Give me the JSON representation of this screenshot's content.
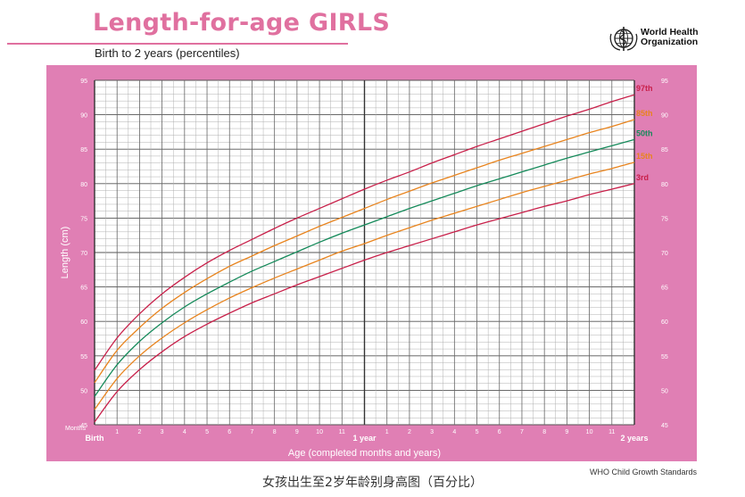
{
  "header": {
    "title": "Length-for-age GIRLS",
    "subtitle": "Birth to 2 years (percentiles)",
    "org_name_line1": "World Health",
    "org_name_line2": "Organization"
  },
  "footer": {
    "caption_cn": "女孩出生至2岁年龄别身高图（百分比）",
    "standards": "WHO Child Growth Standards"
  },
  "colors": {
    "frame": "#e07fb4",
    "grid": "#8a8a8a",
    "p97": "#c8204a",
    "p85": "#e8841e",
    "p50": "#158a5a",
    "p15": "#e8841e",
    "p3": "#c8204a"
  },
  "chart_data": {
    "type": "line",
    "xlabel": "Age (completed months and years)",
    "ylabel": "Length (cm)",
    "xlim": [
      0,
      24
    ],
    "ylim": [
      45,
      95
    ],
    "x_ticks": [
      {
        "value": 0,
        "label": "Birth"
      },
      {
        "value": 1,
        "label": "1"
      },
      {
        "value": 2,
        "label": "2"
      },
      {
        "value": 3,
        "label": "3"
      },
      {
        "value": 4,
        "label": "4"
      },
      {
        "value": 5,
        "label": "5"
      },
      {
        "value": 6,
        "label": "6"
      },
      {
        "value": 7,
        "label": "7"
      },
      {
        "value": 8,
        "label": "8"
      },
      {
        "value": 9,
        "label": "9"
      },
      {
        "value": 10,
        "label": "10"
      },
      {
        "value": 11,
        "label": "11"
      },
      {
        "value": 12,
        "label": "1 year"
      },
      {
        "value": 13,
        "label": "1"
      },
      {
        "value": 14,
        "label": "2"
      },
      {
        "value": 15,
        "label": "3"
      },
      {
        "value": 16,
        "label": "4"
      },
      {
        "value": 17,
        "label": "5"
      },
      {
        "value": 18,
        "label": "6"
      },
      {
        "value": 19,
        "label": "7"
      },
      {
        "value": 20,
        "label": "8"
      },
      {
        "value": 21,
        "label": "9"
      },
      {
        "value": 22,
        "label": "10"
      },
      {
        "value": 23,
        "label": "11"
      },
      {
        "value": 24,
        "label": "2 years"
      }
    ],
    "x_axis_unit_label": "Months",
    "y_ticks": [
      45,
      50,
      55,
      60,
      65,
      70,
      75,
      80,
      85,
      90,
      95
    ],
    "grid": true,
    "x": [
      0,
      1,
      2,
      3,
      4,
      5,
      6,
      7,
      8,
      9,
      10,
      11,
      12,
      13,
      14,
      15,
      16,
      17,
      18,
      19,
      20,
      21,
      22,
      23,
      24
    ],
    "series": [
      {
        "name": "97th",
        "color_key": "p97",
        "values": [
          52.9,
          57.6,
          61.1,
          64.0,
          66.4,
          68.5,
          70.3,
          71.9,
          73.5,
          75.0,
          76.4,
          77.8,
          79.2,
          80.5,
          81.7,
          83.0,
          84.2,
          85.4,
          86.5,
          87.6,
          88.7,
          89.8,
          90.8,
          91.9,
          92.9
        ]
      },
      {
        "name": "85th",
        "color_key": "p85",
        "values": [
          51.1,
          55.8,
          59.1,
          61.9,
          64.2,
          66.2,
          68.0,
          69.5,
          71.0,
          72.4,
          73.8,
          75.1,
          76.4,
          77.7,
          78.9,
          80.1,
          81.2,
          82.3,
          83.4,
          84.4,
          85.4,
          86.4,
          87.4,
          88.3,
          89.3
        ]
      },
      {
        "name": "50th",
        "color_key": "p50",
        "values": [
          49.1,
          53.7,
          57.1,
          59.8,
          62.1,
          64.0,
          65.7,
          67.3,
          68.7,
          70.1,
          71.5,
          72.8,
          74.0,
          75.2,
          76.4,
          77.5,
          78.6,
          79.7,
          80.7,
          81.7,
          82.7,
          83.7,
          84.6,
          85.5,
          86.4
        ]
      },
      {
        "name": "15th",
        "color_key": "p15",
        "values": [
          47.2,
          51.7,
          55.0,
          57.6,
          59.8,
          61.7,
          63.4,
          64.9,
          66.3,
          67.6,
          68.9,
          70.2,
          71.3,
          72.5,
          73.6,
          74.7,
          75.7,
          76.7,
          77.7,
          78.7,
          79.6,
          80.5,
          81.4,
          82.2,
          83.1
        ]
      },
      {
        "name": "3rd",
        "color_key": "p3",
        "values": [
          45.4,
          49.8,
          53.0,
          55.6,
          57.8,
          59.6,
          61.2,
          62.7,
          64.0,
          65.3,
          66.5,
          67.7,
          68.9,
          70.0,
          71.0,
          72.0,
          73.0,
          74.0,
          74.9,
          75.8,
          76.7,
          77.5,
          78.4,
          79.2,
          80.0
        ]
      }
    ]
  }
}
